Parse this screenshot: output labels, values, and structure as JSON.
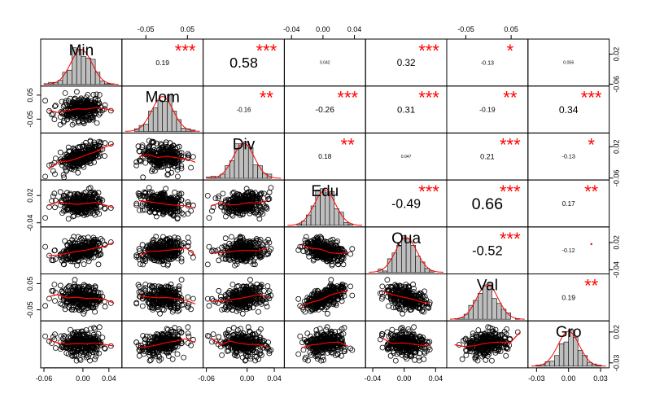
{
  "chart_data": {
    "type": "scatter_matrix",
    "title": "",
    "variables": [
      "Min",
      "Mom",
      "Div",
      "Edu",
      "Qua",
      "Val",
      "Gro"
    ],
    "correlations": [
      {
        "row": 0,
        "col": 1,
        "r": "0.19",
        "stars": "***"
      },
      {
        "row": 0,
        "col": 2,
        "r": "0.58",
        "stars": "***"
      },
      {
        "row": 0,
        "col": 3,
        "r": "0.042",
        "stars": ""
      },
      {
        "row": 0,
        "col": 4,
        "r": "0.32",
        "stars": "***"
      },
      {
        "row": 0,
        "col": 5,
        "r": "-0.13",
        "stars": "*"
      },
      {
        "row": 0,
        "col": 6,
        "r": "0.056",
        "stars": ""
      },
      {
        "row": 1,
        "col": 2,
        "r": "-0.16",
        "stars": "**"
      },
      {
        "row": 1,
        "col": 3,
        "r": "-0.26",
        "stars": "***"
      },
      {
        "row": 1,
        "col": 4,
        "r": "0.31",
        "stars": "***"
      },
      {
        "row": 1,
        "col": 5,
        "r": "-0.19",
        "stars": "**"
      },
      {
        "row": 1,
        "col": 6,
        "r": "0.34",
        "stars": "***"
      },
      {
        "row": 2,
        "col": 3,
        "r": "0.18",
        "stars": "**"
      },
      {
        "row": 2,
        "col": 4,
        "r": "0.047",
        "stars": ""
      },
      {
        "row": 2,
        "col": 5,
        "r": "0.21",
        "stars": "***"
      },
      {
        "row": 2,
        "col": 6,
        "r": "-0.13",
        "stars": "*"
      },
      {
        "row": 3,
        "col": 4,
        "r": "-0.49",
        "stars": "***"
      },
      {
        "row": 3,
        "col": 5,
        "r": "0.66",
        "stars": "***"
      },
      {
        "row": 3,
        "col": 6,
        "r": "0.17",
        "stars": "**"
      },
      {
        "row": 4,
        "col": 5,
        "r": "-0.52",
        "stars": "***"
      },
      {
        "row": 4,
        "col": 6,
        "r": "-0.12",
        "stars": "."
      },
      {
        "row": 5,
        "col": 6,
        "r": "0.19",
        "stars": "**"
      }
    ],
    "ranges": [
      [
        -0.06,
        0.055
      ],
      [
        -0.1,
        0.08
      ],
      [
        -0.06,
        0.05
      ],
      [
        -0.045,
        0.05
      ],
      [
        -0.045,
        0.05
      ],
      [
        -0.085,
        0.08
      ],
      [
        -0.035,
        0.035
      ]
    ],
    "axes": [
      {
        "side": "bottom",
        "var": 0,
        "ticks": [
          "-0.06",
          "0.00",
          "0.04"
        ],
        "values": [
          -0.06,
          0.0,
          0.04
        ]
      },
      {
        "side": "bottom",
        "var": 2,
        "ticks": [
          "-0.06",
          "0.00",
          "0.04"
        ],
        "values": [
          -0.06,
          0.0,
          0.04
        ]
      },
      {
        "side": "bottom",
        "var": 4,
        "ticks": [
          "-0.04",
          "0.00",
          "0.04"
        ],
        "values": [
          -0.04,
          0.0,
          0.04
        ]
      },
      {
        "side": "bottom",
        "var": 6,
        "ticks": [
          "-0.03",
          "0.00",
          "0.03"
        ],
        "values": [
          -0.03,
          0.0,
          0.03
        ]
      },
      {
        "side": "top",
        "var": 1,
        "ticks": [
          "-0.05",
          "0.05"
        ],
        "values": [
          -0.05,
          0.05
        ]
      },
      {
        "side": "top",
        "var": 3,
        "ticks": [
          "-0.04",
          "0.00",
          "0.04"
        ],
        "values": [
          -0.04,
          0.0,
          0.04
        ]
      },
      {
        "side": "top",
        "var": 5,
        "ticks": [
          "-0.05",
          "0.05"
        ],
        "values": [
          -0.05,
          0.05
        ]
      },
      {
        "side": "left",
        "var": 1,
        "ticks": [
          "-0.05",
          "0.05"
        ],
        "values": [
          -0.05,
          0.05
        ]
      },
      {
        "side": "left",
        "var": 3,
        "ticks": [
          "-0.04",
          "0.02"
        ],
        "values": [
          -0.04,
          0.02
        ]
      },
      {
        "side": "left",
        "var": 5,
        "ticks": [
          "-0.05",
          "0.05"
        ],
        "values": [
          -0.05,
          0.05
        ]
      },
      {
        "side": "right",
        "var": 0,
        "ticks": [
          "-0.06",
          "0.02"
        ],
        "values": [
          -0.06,
          0.02
        ]
      },
      {
        "side": "right",
        "var": 2,
        "ticks": [
          "-0.06",
          "0.02"
        ],
        "values": [
          -0.06,
          0.02
        ]
      },
      {
        "side": "right",
        "var": 4,
        "ticks": [
          "-0.04",
          "0.02"
        ],
        "values": [
          -0.04,
          0.02
        ]
      },
      {
        "side": "right",
        "var": 6,
        "ticks": [
          "-0.03",
          "0.02"
        ],
        "values": [
          -0.03,
          0.02
        ]
      }
    ],
    "colors": {
      "points": "#000000",
      "smooth": "#ff0000",
      "bars": "#bebebe",
      "stars": "#ff0000",
      "text": "#000000"
    },
    "n_points": 300
  }
}
